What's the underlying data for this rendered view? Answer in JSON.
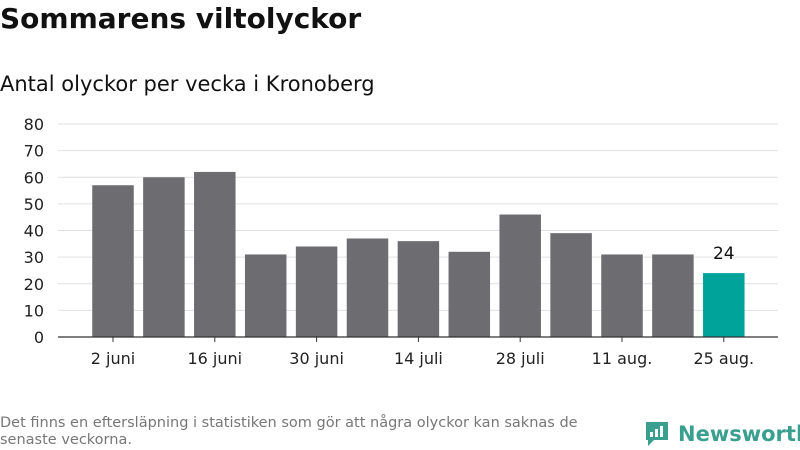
{
  "header": {
    "title": "Sommarens viltolyckor",
    "subtitle": "Antal olyckor per vecka i Kronoberg"
  },
  "footer": {
    "note": "Det finns en eftersläpning i statistiken som gör att några olyckor kan saknas de senaste veckorna.",
    "brand": "Newsworthy"
  },
  "chart_data": {
    "type": "bar",
    "title": "Sommarens viltolyckor",
    "subtitle": "Antal olyckor per vecka i Kronoberg",
    "xlabel": "",
    "ylabel": "",
    "ylim": [
      0,
      80
    ],
    "yticks": [
      0,
      10,
      20,
      30,
      40,
      50,
      60,
      70,
      80
    ],
    "grid": true,
    "xtick_labels": [
      {
        "index": 0,
        "label": "2 juni"
      },
      {
        "index": 2,
        "label": "16 juni"
      },
      {
        "index": 4,
        "label": "30 juni"
      },
      {
        "index": 6,
        "label": "14 juli"
      },
      {
        "index": 8,
        "label": "28 juli"
      },
      {
        "index": 10,
        "label": "11 aug."
      },
      {
        "index": 12,
        "label": "25 aug."
      }
    ],
    "values": [
      57,
      60,
      62,
      31,
      34,
      37,
      36,
      32,
      46,
      39,
      31,
      31,
      24
    ],
    "highlight_index": 12,
    "highlight_label": "24",
    "bar_color": "#6d6c71",
    "highlight_color": "#00a39a",
    "grid_color": "#e0e0e0",
    "axis_color": "#333333"
  }
}
